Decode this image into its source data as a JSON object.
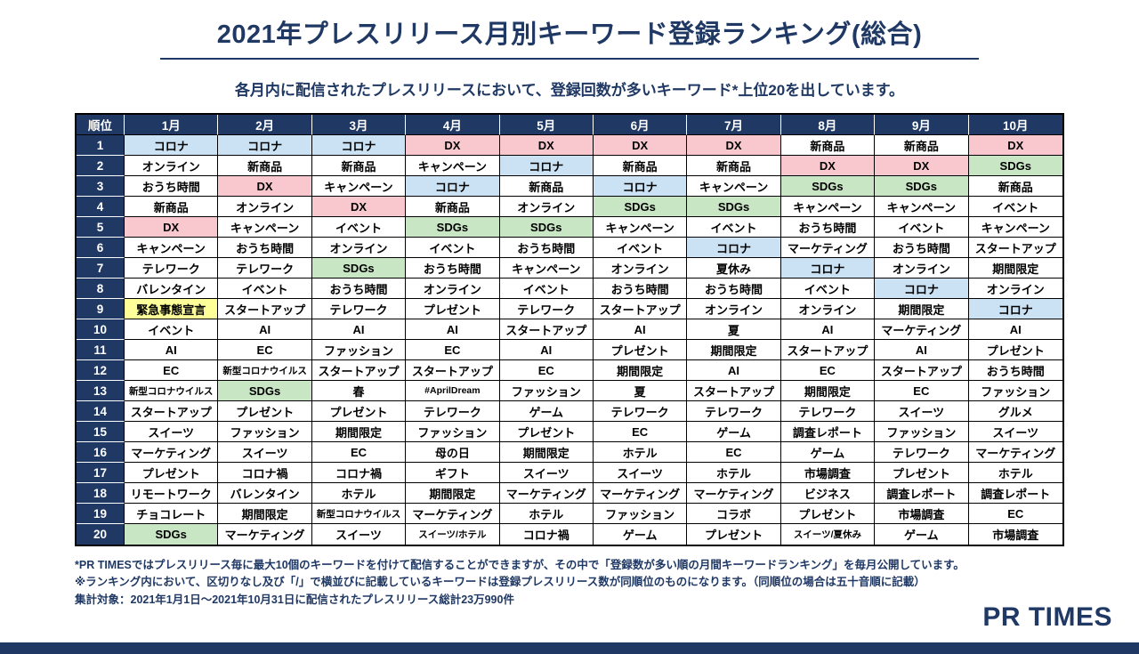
{
  "title": "2021年プレスリリース月別キーワード登録ランキング(総合)",
  "subtitle": "各月内に配信されたプレスリリースにおいて、登録回数が多いキーワード*上位20を出しています。",
  "chart_data": {
    "type": "table",
    "rank_header": "順位",
    "months": [
      "1月",
      "2月",
      "3月",
      "4月",
      "5月",
      "6月",
      "7月",
      "8月",
      "9月",
      "10月"
    ],
    "rows": [
      {
        "rank": "1",
        "keywords": [
          "コロナ",
          "コロナ",
          "コロナ",
          "DX",
          "DX",
          "DX",
          "DX",
          "新商品",
          "新商品",
          "DX"
        ]
      },
      {
        "rank": "2",
        "keywords": [
          "オンライン",
          "新商品",
          "新商品",
          "キャンペーン",
          "コロナ",
          "新商品",
          "新商品",
          "DX",
          "DX",
          "SDGs"
        ]
      },
      {
        "rank": "3",
        "keywords": [
          "おうち時間",
          "DX",
          "キャンペーン",
          "コロナ",
          "新商品",
          "コロナ",
          "キャンペーン",
          "SDGs",
          "SDGs",
          "新商品"
        ]
      },
      {
        "rank": "4",
        "keywords": [
          "新商品",
          "オンライン",
          "DX",
          "新商品",
          "オンライン",
          "SDGs",
          "SDGs",
          "キャンペーン",
          "キャンペーン",
          "イベント"
        ]
      },
      {
        "rank": "5",
        "keywords": [
          "DX",
          "キャンペーン",
          "イベント",
          "SDGs",
          "SDGs",
          "キャンペーン",
          "イベント",
          "おうち時間",
          "イベント",
          "キャンペーン"
        ]
      },
      {
        "rank": "6",
        "keywords": [
          "キャンペーン",
          "おうち時間",
          "オンライン",
          "イベント",
          "おうち時間",
          "イベント",
          "コロナ",
          "マーケティング",
          "おうち時間",
          "スタートアップ"
        ]
      },
      {
        "rank": "7",
        "keywords": [
          "テレワーク",
          "テレワーク",
          "SDGs",
          "おうち時間",
          "キャンペーン",
          "オンライン",
          "夏休み",
          "コロナ",
          "オンライン",
          "期間限定"
        ]
      },
      {
        "rank": "8",
        "keywords": [
          "バレンタイン",
          "イベント",
          "おうち時間",
          "オンライン",
          "イベント",
          "おうち時間",
          "おうち時間",
          "イベント",
          "コロナ",
          "オンライン"
        ]
      },
      {
        "rank": "9",
        "keywords": [
          "緊急事態宣言",
          "スタートアップ",
          "テレワーク",
          "プレゼント",
          "テレワーク",
          "スタートアップ",
          "オンライン",
          "オンライン",
          "期間限定",
          "コロナ"
        ]
      },
      {
        "rank": "10",
        "keywords": [
          "イベント",
          "AI",
          "AI",
          "AI",
          "スタートアップ",
          "AI",
          "夏",
          "AI",
          "マーケティング",
          "AI"
        ]
      },
      {
        "rank": "11",
        "keywords": [
          "AI",
          "EC",
          "ファッション",
          "EC",
          "AI",
          "プレゼント",
          "期間限定",
          "スタートアップ",
          "AI",
          "プレゼント"
        ]
      },
      {
        "rank": "12",
        "keywords": [
          "EC",
          "新型コロナウイルス",
          "スタートアップ",
          "スタートアップ",
          "EC",
          "期間限定",
          "AI",
          "EC",
          "スタートアップ",
          "おうち時間"
        ]
      },
      {
        "rank": "13",
        "keywords": [
          "新型コロナウイルス",
          "SDGs",
          "春",
          "#AprilDream",
          "ファッション",
          "夏",
          "スタートアップ",
          "期間限定",
          "EC",
          "ファッション"
        ]
      },
      {
        "rank": "14",
        "keywords": [
          "スタートアップ",
          "プレゼント",
          "プレゼント",
          "テレワーク",
          "ゲーム",
          "テレワーク",
          "テレワーク",
          "テレワーク",
          "スイーツ",
          "グルメ"
        ]
      },
      {
        "rank": "15",
        "keywords": [
          "スイーツ",
          "ファッション",
          "期間限定",
          "ファッション",
          "プレゼント",
          "EC",
          "ゲーム",
          "調査レポート",
          "ファッション",
          "スイーツ"
        ]
      },
      {
        "rank": "16",
        "keywords": [
          "マーケティング",
          "スイーツ",
          "EC",
          "母の日",
          "期間限定",
          "ホテル",
          "EC",
          "ゲーム",
          "テレワーク",
          "マーケティング"
        ]
      },
      {
        "rank": "17",
        "keywords": [
          "プレゼント",
          "コロナ禍",
          "コロナ禍",
          "ギフト",
          "スイーツ",
          "スイーツ",
          "ホテル",
          "市場調査",
          "プレゼント",
          "ホテル"
        ]
      },
      {
        "rank": "18",
        "keywords": [
          "リモートワーク",
          "バレンタイン",
          "ホテル",
          "期間限定",
          "マーケティング",
          "マーケティング",
          "マーケティング",
          "ビジネス",
          "調査レポート",
          "調査レポート"
        ]
      },
      {
        "rank": "19",
        "keywords": [
          "チョコレート",
          "期間限定",
          "新型コロナウイルス",
          "マーケティング",
          "ホテル",
          "ファッション",
          "コラボ",
          "プレゼント",
          "市場調査",
          "EC"
        ]
      },
      {
        "rank": "20",
        "keywords": [
          "SDGs",
          "マーケティング",
          "スイーツ",
          "スイーツ/ホテル",
          "コロナ禍",
          "ゲーム",
          "プレゼント",
          "スイーツ/夏休み",
          "ゲーム",
          "市場調査"
        ]
      }
    ],
    "highlights": {
      "コロナ": "blue",
      "DX": "pink",
      "SDGs": "green",
      "緊急事態宣言": "yellow"
    }
  },
  "footnotes": [
    "*PR TIMESではプレスリリース毎に最大10個のキーワードを付けて配信することができますが、その中で「登録数が多い順の月間キーワードランキング」を毎月公開しています。",
    "※ランキング内において、区切りなし及び「/」で横並びに記載しているキーワードは登録プレスリリース数が同順位のものになります。（同順位の場合は五十音順に記載）",
    "集計対象：2021年1月1日～2021年10月31日に配信されたプレスリリース総計23万990件"
  ],
  "logo": "PR TIMES",
  "colors": {
    "navy": "#1f3864",
    "highlight_blue": "#cbe2f4",
    "highlight_pink": "#f8c8ce",
    "highlight_green": "#c8e5c4",
    "highlight_yellow": "#ffff99"
  }
}
